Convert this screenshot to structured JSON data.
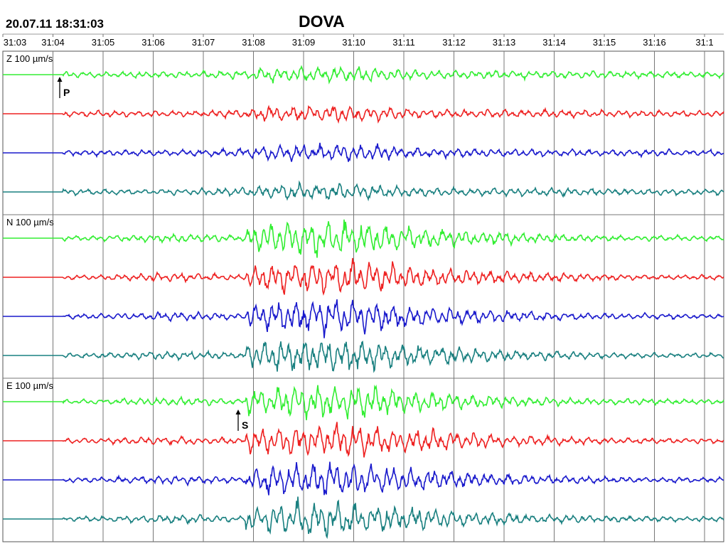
{
  "chart_data": {
    "type": "line",
    "title": "DOVA",
    "start_time": "20.07.11 18:31:03",
    "x_ticks": [
      "31:03",
      "31:04",
      "31:05",
      "31:06",
      "31:07",
      "31:08",
      "31:09",
      "31:10",
      "31:11",
      "31:12",
      "31:13",
      "31:14",
      "31:15",
      "31:16",
      "31:1"
    ],
    "panels": [
      {
        "component": "Z",
        "scale": "100 µm/s",
        "label": "Z  100 µm/s"
      },
      {
        "component": "N",
        "scale": "100 µm/s",
        "label": "N  100 µm/s"
      },
      {
        "component": "E",
        "scale": "100 µm/s",
        "label": "E  100 µm/s"
      }
    ],
    "trace_colors": [
      "#33ee33",
      "#ee2222",
      "#1a1acc",
      "#1a8080"
    ],
    "phases": [
      {
        "label": "P",
        "panel": "Z",
        "time": "31:04.1"
      },
      {
        "label": "S",
        "panel": "E",
        "time": "31:07.7"
      }
    ],
    "grid": true
  }
}
